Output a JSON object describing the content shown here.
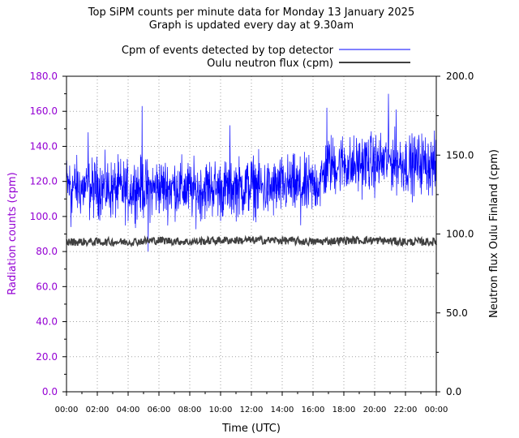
{
  "chart_data": {
    "type": "line",
    "title": "Top SiPM counts per minute data for Monday 13 January 2025",
    "subtitle": "Graph is updated every day at 9.30am",
    "xlabel": "Time (UTC)",
    "ylabel_left": "Radiation counts (cpm)",
    "ylabel_right": "Neutron flux Oulu Finland (cpm)",
    "x_ticks": [
      "00:00",
      "02:00",
      "04:00",
      "06:00",
      "08:00",
      "10:00",
      "12:00",
      "14:00",
      "16:00",
      "18:00",
      "20:00",
      "22:00",
      "00:00"
    ],
    "y_left_ticks": [
      "0.0",
      "20.0",
      "40.0",
      "60.0",
      "80.0",
      "100.0",
      "120.0",
      "140.0",
      "160.0",
      "180.0"
    ],
    "y_right_ticks": [
      "0.0",
      "50.0",
      "100.0",
      "150.0",
      "200.0"
    ],
    "ylim_left": [
      0,
      180
    ],
    "ylim_right": [
      0,
      200
    ],
    "xlim_hours": [
      0,
      24
    ],
    "grid": true,
    "legend_position": "top-right, above plot",
    "colors": {
      "left_axis": "#9400d3",
      "series_top": "#0000ff",
      "series_oulu": "#404040",
      "grid": "#a0a0a0"
    },
    "series": [
      {
        "name": "Cpm of events detected by top detector",
        "axis": "left",
        "color": "#0000ff",
        "x_hours": [
          0,
          0.5,
          1,
          1.5,
          2,
          2.5,
          3,
          3.5,
          4,
          4.5,
          5,
          5.5,
          6,
          6.5,
          7,
          7.5,
          8,
          8.5,
          9,
          9.5,
          10,
          10.5,
          11,
          11.5,
          12,
          12.5,
          13,
          13.5,
          14,
          14.5,
          15,
          15.5,
          16,
          16.5,
          17,
          17.5,
          18,
          18.5,
          19,
          19.5,
          20,
          20.5,
          21,
          21.5,
          22,
          22.5,
          23,
          23.5,
          24
        ],
        "values": [
          118,
          117,
          116,
          115,
          117,
          116,
          115,
          116,
          114,
          117,
          116,
          115,
          117,
          116,
          117,
          116,
          115,
          114,
          116,
          117,
          115,
          116,
          117,
          116,
          118,
          117,
          115,
          116,
          117,
          118,
          117,
          116,
          118,
          120,
          130,
          129,
          131,
          128,
          130,
          131,
          130,
          131,
          132,
          131,
          130,
          129,
          131,
          130,
          128
        ],
        "noise_range": 15,
        "spikes": [
          {
            "x_hours": 4.9,
            "value": 163
          },
          {
            "x_hours": 5.3,
            "value": 80
          },
          {
            "x_hours": 16.9,
            "value": 162
          },
          {
            "x_hours": 20.9,
            "value": 170
          },
          {
            "x_hours": 21.4,
            "value": 161
          },
          {
            "x_hours": 1.4,
            "value": 148
          },
          {
            "x_hours": 10.6,
            "value": 152
          },
          {
            "x_hours": 15.2,
            "value": 95
          },
          {
            "x_hours": 0.3,
            "value": 94
          }
        ]
      },
      {
        "name": "Oulu neutron flux (cpm)",
        "axis": "right",
        "color": "#404040",
        "x_hours": [
          0,
          2,
          4,
          6,
          8,
          10,
          12,
          14,
          16,
          18,
          20,
          22,
          24
        ],
        "values": [
          95,
          95,
          95,
          96,
          95,
          96,
          96,
          96,
          95,
          96,
          96,
          95,
          95
        ],
        "noise_range": 2.5
      }
    ]
  }
}
